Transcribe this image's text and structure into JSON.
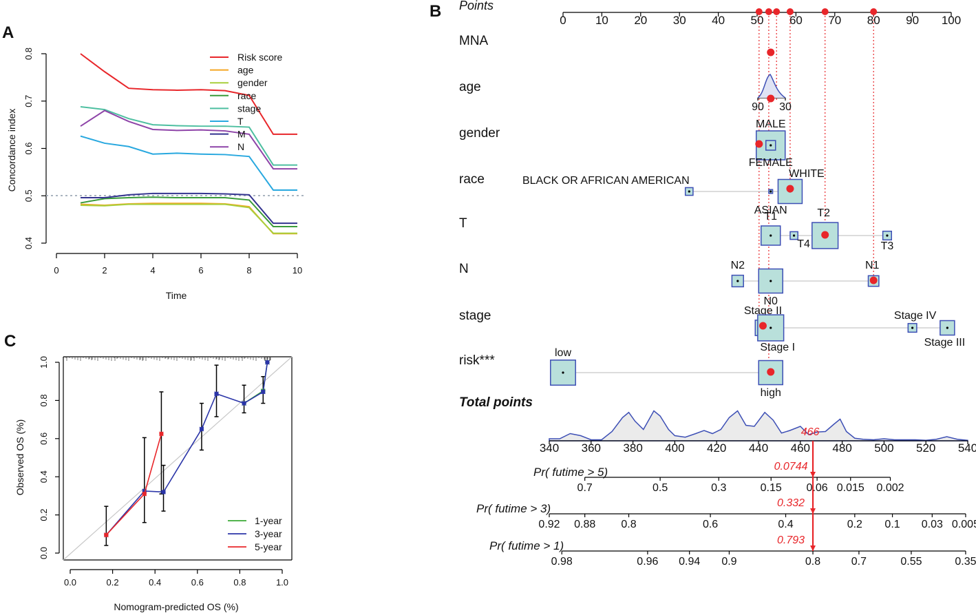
{
  "panel_labels": {
    "a": "A",
    "b": "B",
    "c": "C"
  },
  "chart_data": [
    {
      "id": "A",
      "type": "line",
      "xlabel": "Time",
      "ylabel": "Concordance index",
      "xlim": [
        0,
        10
      ],
      "ylim": [
        0.4,
        0.8
      ],
      "x_ticks": [
        "0",
        "2",
        "4",
        "6",
        "8",
        "10"
      ],
      "y_ticks": [
        "0.4",
        "0.5",
        "0.6",
        "0.7",
        "0.8"
      ],
      "reference_line": 0.5,
      "legend_position": "top-right",
      "x": [
        1,
        2,
        3,
        4,
        5,
        6,
        7,
        8,
        9,
        10
      ],
      "series": [
        {
          "name": "Risk score",
          "color": "#e8262a",
          "values": [
            0.8,
            0.762,
            0.727,
            0.724,
            0.723,
            0.724,
            0.722,
            0.712,
            0.63,
            0.63
          ]
        },
        {
          "name": "age",
          "color": "#f5a623",
          "values": [
            0.482,
            0.48,
            0.483,
            0.484,
            0.484,
            0.484,
            0.483,
            0.477,
            0.42,
            0.42
          ]
        },
        {
          "name": "gender",
          "color": "#a8cf3c",
          "values": [
            0.48,
            0.479,
            0.482,
            0.482,
            0.482,
            0.482,
            0.482,
            0.475,
            0.421,
            0.421
          ]
        },
        {
          "name": "race",
          "color": "#3a9b3a",
          "values": [
            0.485,
            0.494,
            0.496,
            0.497,
            0.496,
            0.496,
            0.496,
            0.491,
            0.435,
            0.435
          ]
        },
        {
          "name": "stage",
          "color": "#4dbfa0",
          "values": [
            0.688,
            0.682,
            0.663,
            0.65,
            0.648,
            0.647,
            0.647,
            0.645,
            0.565,
            0.565
          ]
        },
        {
          "name": "T",
          "color": "#28a8df",
          "values": [
            0.626,
            0.611,
            0.604,
            0.588,
            0.59,
            0.588,
            0.587,
            0.583,
            0.512,
            0.512
          ]
        },
        {
          "name": "M",
          "color": "#33338f",
          "values": [
            0.496,
            0.496,
            0.502,
            0.505,
            0.505,
            0.505,
            0.504,
            0.502,
            0.442,
            0.442
          ]
        },
        {
          "name": "N",
          "color": "#8e44a8",
          "values": [
            0.647,
            0.68,
            0.657,
            0.64,
            0.638,
            0.639,
            0.637,
            0.63,
            0.557,
            0.557
          ]
        }
      ]
    },
    {
      "id": "B",
      "type": "nomogram",
      "points_axis": {
        "label": "Points",
        "min": 0,
        "max": 100,
        "ticks": [
          "0",
          "10",
          "20",
          "30",
          "40",
          "50",
          "60",
          "70",
          "80",
          "90",
          "100"
        ]
      },
      "selected_points": [
        50.5,
        53,
        55,
        58.5,
        67.5,
        80
      ],
      "variables": [
        {
          "name": "MNA",
          "marker_points": 53.5,
          "levels": []
        },
        {
          "name": "age",
          "marker_points": 53.5,
          "ticks": [
            "90",
            "30"
          ],
          "tick_points": [
            50,
            57
          ],
          "levels": []
        },
        {
          "name": "gender",
          "marker_points": 50.5,
          "levels": [
            {
              "label": "MALE",
              "points": 53.5,
              "box": 3.0
            },
            {
              "label": "FEMALE",
              "points": 53.5,
              "box": 1.0
            }
          ]
        },
        {
          "name": "race",
          "marker_points": 58.5,
          "levels": [
            {
              "label": "BLACK OR AFRICAN AMERICAN",
              "points": 32.5,
              "box": 0.8
            },
            {
              "label": "WHITE",
              "points": 58.5,
              "box": 2.5
            },
            {
              "label": "ASIAN",
              "points": 53.5,
              "box": 0.4
            }
          ]
        },
        {
          "name": "T",
          "marker_points": 67.5,
          "levels": [
            {
              "label": "T1",
              "points": 53.5,
              "box": 2.0
            },
            {
              "label": "T4",
              "points": 59.5,
              "box": 0.8
            },
            {
              "label": "T2",
              "points": 67.5,
              "box": 2.7
            },
            {
              "label": "T3",
              "points": 83.5,
              "box": 0.9
            }
          ]
        },
        {
          "name": "N",
          "marker_points": 80,
          "levels": [
            {
              "label": "N2",
              "points": 45,
              "box": 1.2
            },
            {
              "label": "N0",
              "points": 53.5,
              "box": 2.5
            },
            {
              "label": "N1",
              "points": 80,
              "box": 1.1
            }
          ]
        },
        {
          "name": "stage",
          "marker_points": 51.5,
          "levels": [
            {
              "label": "Stage II",
              "points": 51.5,
              "box": 1.6
            },
            {
              "label": "Stage I",
              "points": 53.5,
              "box": 2.7
            },
            {
              "label": "Stage IV",
              "points": 90,
              "box": 0.9
            },
            {
              "label": "Stage III",
              "points": 99,
              "box": 1.5
            }
          ]
        },
        {
          "name": "risk***",
          "marker_points": 53.5,
          "levels": [
            {
              "label": "low",
              "points": 0,
              "box": 2.6
            },
            {
              "label": "high",
              "points": 53.5,
              "box": 2.5
            }
          ]
        }
      ],
      "total_points": {
        "label": "Total points",
        "min": 340,
        "max": 540,
        "ticks": [
          "340",
          "360",
          "380",
          "400",
          "420",
          "440",
          "460",
          "480",
          "500",
          "520",
          "540"
        ],
        "selected": "466",
        "selected_value": 466
      },
      "density": [
        [
          340,
          0.04
        ],
        [
          345,
          0.04
        ],
        [
          350,
          0.14
        ],
        [
          355,
          0.1
        ],
        [
          360,
          0.02
        ],
        [
          365,
          0.02
        ],
        [
          370,
          0.18
        ],
        [
          375,
          0.45
        ],
        [
          378,
          0.55
        ],
        [
          381,
          0.38
        ],
        [
          385,
          0.22
        ],
        [
          390,
          0.58
        ],
        [
          393,
          0.48
        ],
        [
          397,
          0.22
        ],
        [
          400,
          0.1
        ],
        [
          405,
          0.07
        ],
        [
          410,
          0.14
        ],
        [
          414,
          0.2
        ],
        [
          418,
          0.14
        ],
        [
          422,
          0.22
        ],
        [
          426,
          0.45
        ],
        [
          430,
          0.58
        ],
        [
          434,
          0.3
        ],
        [
          438,
          0.28
        ],
        [
          443,
          0.55
        ],
        [
          447,
          0.4
        ],
        [
          451,
          0.15
        ],
        [
          455,
          0.2
        ],
        [
          460,
          0.28
        ],
        [
          464,
          0.12
        ],
        [
          468,
          0.17
        ],
        [
          472,
          0.18
        ],
        [
          476,
          0.32
        ],
        [
          479,
          0.42
        ],
        [
          482,
          0.18
        ],
        [
          486,
          0.05
        ],
        [
          490,
          0.03
        ],
        [
          495,
          0.02
        ],
        [
          500,
          0.04
        ],
        [
          505,
          0.02
        ],
        [
          510,
          0.02
        ],
        [
          515,
          0.02
        ],
        [
          520,
          0.01
        ],
        [
          525,
          0.03
        ],
        [
          530,
          0.08
        ],
        [
          535,
          0.03
        ],
        [
          540,
          0.01
        ]
      ],
      "prob_axes": [
        {
          "label": "Pr( futime > 5 )",
          "label_short": "Pr( futime > 5)",
          "selected": "0.0744",
          "ticks": [
            {
              "label": "0.7",
              "tp": 357
            },
            {
              "label": "0.5",
              "tp": 393
            },
            {
              "label": "0.3",
              "tp": 421
            },
            {
              "label": "0.15",
              "tp": 446
            },
            {
              "label": "0.06",
              "tp": 468
            },
            {
              "label": "0.015",
              "tp": 484
            },
            {
              "label": "0.002",
              "tp": 503
            }
          ]
        },
        {
          "label": "Pr( futime > 3 )",
          "label_short": "Pr( futime > 3)",
          "selected": "0.332",
          "ticks": [
            {
              "label": "0.92",
              "tp": 340
            },
            {
              "label": "0.88",
              "tp": 357
            },
            {
              "label": "0.8",
              "tp": 378
            },
            {
              "label": "0.6",
              "tp": 417
            },
            {
              "label": "0.4",
              "tp": 453
            },
            {
              "label": "0.2",
              "tp": 486
            },
            {
              "label": "0.1",
              "tp": 504
            },
            {
              "label": "0.03",
              "tp": 523
            },
            {
              "label": "0.005",
              "tp": 539
            }
          ]
        },
        {
          "label": "Pr( futime > 1 )",
          "label_short": "Pr( futime > 1)",
          "selected": "0.793",
          "ticks": [
            {
              "label": "0.98",
              "tp": 346
            },
            {
              "label": "0.96",
              "tp": 387
            },
            {
              "label": "0.94",
              "tp": 407
            },
            {
              "label": "0.9",
              "tp": 426
            },
            {
              "label": "0.8",
              "tp": 466
            },
            {
              "label": "0.7",
              "tp": 488
            },
            {
              "label": "0.55",
              "tp": 513
            },
            {
              "label": "0.35",
              "tp": 539
            }
          ]
        }
      ]
    },
    {
      "id": "C",
      "type": "scatter",
      "xlabel": "Nomogram-predicted OS (%)",
      "ylabel": "Observed OS (%)",
      "xlim": [
        0,
        1
      ],
      "ylim": [
        0,
        1
      ],
      "x_ticks": [
        "0.0",
        "0.2",
        "0.4",
        "0.6",
        "0.8",
        "1.0"
      ],
      "y_ticks": [
        "0.0",
        "0.2",
        "0.4",
        "0.6",
        "0.8",
        "1.0"
      ],
      "legend_position": "bottom-right",
      "series": [
        {
          "name": "1-year",
          "color": "#3aaa35",
          "x": [
            0.82,
            0.91,
            0.93
          ],
          "y": [
            0.785,
            0.85,
            1.0
          ]
        },
        {
          "name": "3-year",
          "color": "#2b35a8",
          "x": [
            0.17,
            0.35,
            0.44,
            0.62,
            0.69,
            0.82,
            0.91,
            0.93
          ],
          "y": [
            0.095,
            0.325,
            0.32,
            0.65,
            0.835,
            0.785,
            0.845,
            1.0
          ]
        },
        {
          "name": "5-year",
          "color": "#e8262a",
          "x": [
            0.17,
            0.35,
            0.43
          ],
          "y": [
            0.095,
            0.31,
            0.625
          ]
        }
      ],
      "error_bars": [
        {
          "x": 0.17,
          "low": 0.04,
          "high": 0.245
        },
        {
          "x": 0.35,
          "low": 0.16,
          "high": 0.605
        },
        {
          "x": 0.43,
          "low": 0.31,
          "high": 0.845
        },
        {
          "x": 0.44,
          "low": 0.22,
          "high": 0.46
        },
        {
          "x": 0.62,
          "low": 0.54,
          "high": 0.785
        },
        {
          "x": 0.69,
          "low": 0.715,
          "high": 0.985
        },
        {
          "x": 0.82,
          "low": 0.735,
          "high": 0.88
        },
        {
          "x": 0.91,
          "low": 0.785,
          "high": 0.925
        }
      ]
    }
  ]
}
